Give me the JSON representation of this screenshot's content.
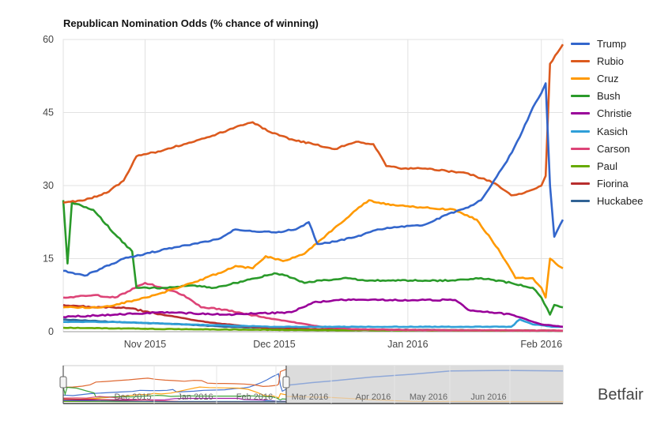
{
  "source_label": "Betfair",
  "chart_data": {
    "type": "line",
    "title": "Republican Nomination Odds (% chance of winning)",
    "xlabel": "",
    "ylabel": "",
    "ylim": [
      0,
      60
    ],
    "y_ticks": [
      0,
      15,
      30,
      45,
      60
    ],
    "x_range": [
      "2015-10-13",
      "2016-02-06"
    ],
    "x_ticks": [
      {
        "date": "2015-11-01",
        "label": "Nov 2015"
      },
      {
        "date": "2015-12-01",
        "label": "Dec 2015"
      },
      {
        "date": "2016-01-01",
        "label": "Jan 2016"
      },
      {
        "date": "2016-02-01",
        "label": "Feb 2016"
      }
    ],
    "grid": true,
    "legend_position": "right",
    "series": [
      {
        "name": "Trump",
        "color": "#3366cc",
        "points": [
          [
            "2015-10-13",
            12.5
          ],
          [
            "2015-10-18",
            11.5
          ],
          [
            "2015-10-22",
            13
          ],
          [
            "2015-10-27",
            15
          ],
          [
            "2015-11-01",
            16
          ],
          [
            "2015-11-06",
            17
          ],
          [
            "2015-11-12",
            18
          ],
          [
            "2015-11-18",
            19
          ],
          [
            "2015-11-22",
            21
          ],
          [
            "2015-11-27",
            20.5
          ],
          [
            "2015-12-02",
            20.5
          ],
          [
            "2015-12-06",
            21
          ],
          [
            "2015-12-09",
            22.5
          ],
          [
            "2015-12-11",
            18
          ],
          [
            "2015-12-15",
            18.5
          ],
          [
            "2015-12-20",
            19.5
          ],
          [
            "2015-12-25",
            21
          ],
          [
            "2015-12-30",
            21.5
          ],
          [
            "2016-01-05",
            22
          ],
          [
            "2016-01-10",
            24
          ],
          [
            "2016-01-15",
            25.5
          ],
          [
            "2016-01-18",
            27
          ],
          [
            "2016-01-21",
            31
          ],
          [
            "2016-01-24",
            35
          ],
          [
            "2016-01-27",
            40
          ],
          [
            "2016-01-30",
            46
          ],
          [
            "2016-02-01",
            49
          ],
          [
            "2016-02-02",
            51
          ],
          [
            "2016-02-03",
            30
          ],
          [
            "2016-02-04",
            19.5
          ],
          [
            "2016-02-06",
            23
          ]
        ]
      },
      {
        "name": "Rubio",
        "color": "#dc5a1e",
        "points": [
          [
            "2015-10-13",
            26.5
          ],
          [
            "2015-10-18",
            27
          ],
          [
            "2015-10-23",
            28.5
          ],
          [
            "2015-10-27",
            31
          ],
          [
            "2015-10-30",
            36
          ],
          [
            "2015-11-04",
            37
          ],
          [
            "2015-11-10",
            38.5
          ],
          [
            "2015-11-16",
            40
          ],
          [
            "2015-11-22",
            42
          ],
          [
            "2015-11-26",
            43
          ],
          [
            "2015-11-30",
            41
          ],
          [
            "2015-12-05",
            39.5
          ],
          [
            "2015-12-10",
            38.5
          ],
          [
            "2015-12-15",
            37.5
          ],
          [
            "2015-12-20",
            39
          ],
          [
            "2015-12-24",
            38.5
          ],
          [
            "2015-12-27",
            34
          ],
          [
            "2015-12-31",
            33.5
          ],
          [
            "2016-01-05",
            33.5
          ],
          [
            "2016-01-10",
            33
          ],
          [
            "2016-01-15",
            32.5
          ],
          [
            "2016-01-18",
            31.5
          ],
          [
            "2016-01-20",
            31
          ],
          [
            "2016-01-22",
            30
          ],
          [
            "2016-01-25",
            28
          ],
          [
            "2016-01-28",
            28.5
          ],
          [
            "2016-02-01",
            30
          ],
          [
            "2016-02-02",
            32
          ],
          [
            "2016-02-03",
            55
          ],
          [
            "2016-02-06",
            59
          ]
        ]
      },
      {
        "name": "Cruz",
        "color": "#ff9900",
        "points": [
          [
            "2015-10-13",
            5
          ],
          [
            "2015-10-22",
            5
          ],
          [
            "2015-10-30",
            6.5
          ],
          [
            "2015-11-05",
            8
          ],
          [
            "2015-11-12",
            10
          ],
          [
            "2015-11-18",
            12
          ],
          [
            "2015-11-22",
            13.5
          ],
          [
            "2015-11-26",
            13
          ],
          [
            "2015-11-29",
            15.5
          ],
          [
            "2015-12-03",
            14.5
          ],
          [
            "2015-12-08",
            16
          ],
          [
            "2015-12-12",
            19
          ],
          [
            "2015-12-16",
            22
          ],
          [
            "2015-12-20",
            25
          ],
          [
            "2015-12-23",
            27
          ],
          [
            "2015-12-28",
            26
          ],
          [
            "2016-01-05",
            25.5
          ],
          [
            "2016-01-12",
            25
          ],
          [
            "2016-01-17",
            23
          ],
          [
            "2016-01-22",
            17
          ],
          [
            "2016-01-26",
            11
          ],
          [
            "2016-01-30",
            11
          ],
          [
            "2016-02-01",
            9
          ],
          [
            "2016-02-02",
            7
          ],
          [
            "2016-02-03",
            15
          ],
          [
            "2016-02-05",
            13.5
          ],
          [
            "2016-02-06",
            13
          ]
        ]
      },
      {
        "name": "Bush",
        "color": "#2a9a2a",
        "points": [
          [
            "2015-10-13",
            27
          ],
          [
            "2015-10-14",
            14
          ],
          [
            "2015-10-15",
            26.5
          ],
          [
            "2015-10-20",
            25
          ],
          [
            "2015-10-25",
            20
          ],
          [
            "2015-10-29",
            16.5
          ],
          [
            "2015-10-30",
            9
          ],
          [
            "2015-11-05",
            9
          ],
          [
            "2015-11-12",
            9.5
          ],
          [
            "2015-11-17",
            9
          ],
          [
            "2015-11-22",
            10
          ],
          [
            "2015-11-27",
            11
          ],
          [
            "2015-12-01",
            12
          ],
          [
            "2015-12-04",
            11.5
          ],
          [
            "2015-12-08",
            10
          ],
          [
            "2015-12-12",
            10.5
          ],
          [
            "2015-12-17",
            11
          ],
          [
            "2015-12-22",
            10.5
          ],
          [
            "2015-12-28",
            10.5
          ],
          [
            "2016-01-05",
            10.5
          ],
          [
            "2016-01-12",
            10.5
          ],
          [
            "2016-01-18",
            11
          ],
          [
            "2016-01-25",
            10
          ],
          [
            "2016-01-30",
            9
          ],
          [
            "2016-02-01",
            7
          ],
          [
            "2016-02-03",
            3.5
          ],
          [
            "2016-02-04",
            5.5
          ],
          [
            "2016-02-06",
            5
          ]
        ]
      },
      {
        "name": "Christie",
        "color": "#990099",
        "points": [
          [
            "2015-10-13",
            3
          ],
          [
            "2015-10-25",
            3.5
          ],
          [
            "2015-11-05",
            4
          ],
          [
            "2015-11-20",
            3.5
          ],
          [
            "2015-12-05",
            4
          ],
          [
            "2015-12-10",
            6
          ],
          [
            "2015-12-16",
            6.5
          ],
          [
            "2015-12-25",
            6.5
          ],
          [
            "2016-01-05",
            6.5
          ],
          [
            "2016-01-12",
            6.5
          ],
          [
            "2016-01-15",
            4.5
          ],
          [
            "2016-01-25",
            3.5
          ],
          [
            "2016-02-01",
            1.5
          ],
          [
            "2016-02-06",
            1
          ]
        ]
      },
      {
        "name": "Kasich",
        "color": "#2f9fd8",
        "points": [
          [
            "2015-10-13",
            2
          ],
          [
            "2015-10-25",
            2
          ],
          [
            "2015-11-10",
            1.5
          ],
          [
            "2015-12-01",
            1
          ],
          [
            "2015-12-20",
            1
          ],
          [
            "2016-01-10",
            1
          ],
          [
            "2016-01-25",
            1
          ],
          [
            "2016-01-27",
            2.5
          ],
          [
            "2016-01-30",
            1.5
          ],
          [
            "2016-02-04",
            1
          ],
          [
            "2016-02-06",
            1
          ]
        ]
      },
      {
        "name": "Carson",
        "color": "#dd4477",
        "points": [
          [
            "2015-10-13",
            7
          ],
          [
            "2015-10-20",
            7.5
          ],
          [
            "2015-10-25",
            7
          ],
          [
            "2015-11-01",
            10
          ],
          [
            "2015-11-05",
            9
          ],
          [
            "2015-11-10",
            7.5
          ],
          [
            "2015-11-14",
            5
          ],
          [
            "2015-11-20",
            4.5
          ],
          [
            "2015-11-28",
            3
          ],
          [
            "2015-12-05",
            2
          ],
          [
            "2015-12-12",
            1
          ],
          [
            "2015-12-20",
            0.5
          ],
          [
            "2016-01-05",
            0.3
          ],
          [
            "2016-02-06",
            0.2
          ]
        ]
      },
      {
        "name": "Paul",
        "color": "#66aa00",
        "points": [
          [
            "2015-10-13",
            0.8
          ],
          [
            "2015-11-10",
            0.5
          ],
          [
            "2015-12-15",
            0.3
          ],
          [
            "2016-02-06",
            0.2
          ]
        ]
      },
      {
        "name": "Fiorina",
        "color": "#b82e2e",
        "points": [
          [
            "2015-10-13",
            5.5
          ],
          [
            "2015-10-20",
            5
          ],
          [
            "2015-10-27",
            5
          ],
          [
            "2015-11-05",
            3.5
          ],
          [
            "2015-11-15",
            2
          ],
          [
            "2015-11-25",
            1
          ],
          [
            "2015-12-10",
            0.5
          ],
          [
            "2016-01-10",
            0.3
          ],
          [
            "2016-02-06",
            0.2
          ]
        ]
      },
      {
        "name": "Huckabee",
        "color": "#316395",
        "points": [
          [
            "2015-10-13",
            2.5
          ],
          [
            "2015-10-25",
            2
          ],
          [
            "2015-11-10",
            1.5
          ],
          [
            "2015-11-20",
            1
          ],
          [
            "2015-12-10",
            0.5
          ],
          [
            "2016-02-06",
            0.2
          ]
        ]
      }
    ],
    "navigator": {
      "x_ticks": [
        "Dec 2015",
        "Jan 2016",
        "Feb 2016",
        "Mar 2016",
        "Apr 2016",
        "May 2016",
        "Jun 2016"
      ]
    }
  }
}
